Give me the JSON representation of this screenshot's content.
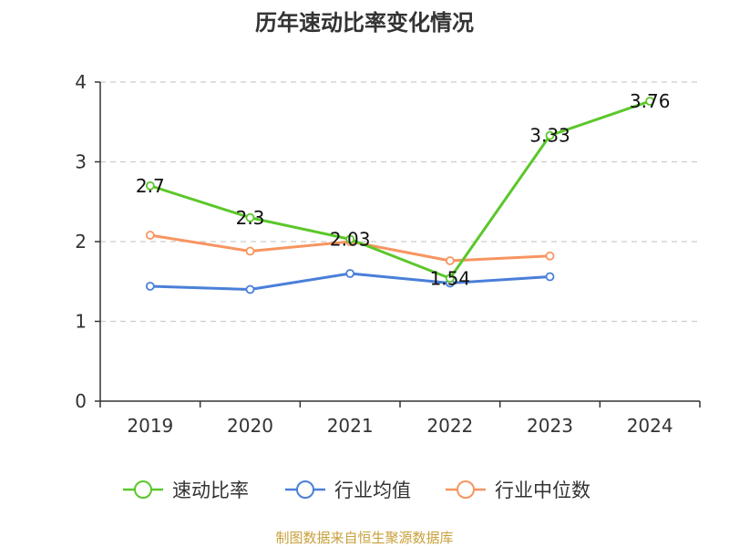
{
  "chart_data": {
    "type": "line",
    "title": "历年速动比率变化情况",
    "categories": [
      "2019",
      "2020",
      "2021",
      "2022",
      "2023",
      "2024"
    ],
    "ylim": [
      0,
      4
    ],
    "yticks": [
      "0",
      "1",
      "2",
      "3",
      "4"
    ],
    "grid": true,
    "legend_position": "bottom",
    "series": [
      {
        "name": "速动比率",
        "color": "#5bc72a",
        "values": [
          2.7,
          2.3,
          2.03,
          1.54,
          3.33,
          3.76
        ],
        "labels": [
          "2.7",
          "2.3",
          "2.03",
          "1.54",
          "3.33",
          "3.76"
        ]
      },
      {
        "name": "行业均值",
        "color": "#4a7fd9",
        "values": [
          1.44,
          1.4,
          1.6,
          1.48,
          1.56,
          null
        ]
      },
      {
        "name": "行业中位数",
        "color": "#f79560",
        "values": [
          2.08,
          1.88,
          2.0,
          1.76,
          1.82,
          null
        ]
      }
    ],
    "source": "制图数据来自恒生聚源数据库",
    "source_color": "#c9a03c"
  }
}
